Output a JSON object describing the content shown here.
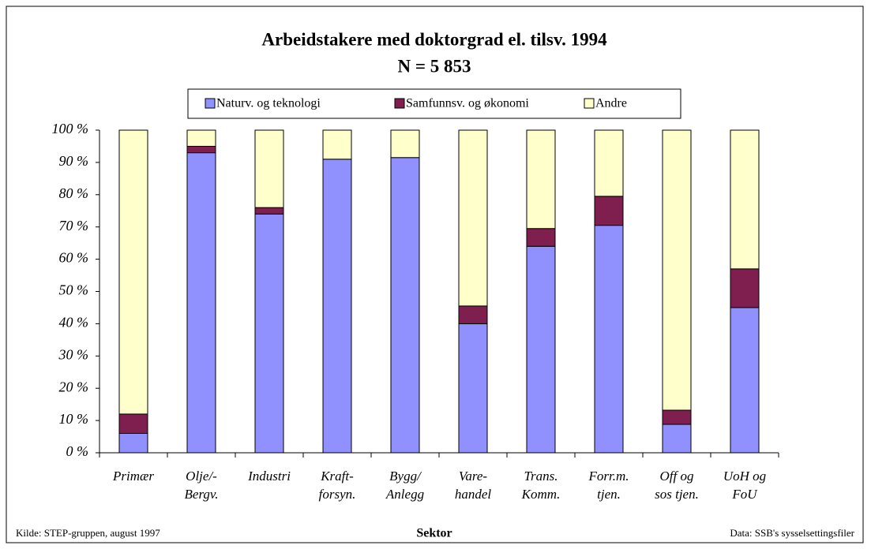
{
  "chart_data": {
    "type": "stacked_bar",
    "title": "Arbeidstakere med doktorgrad el. tilsv. 1994",
    "subtitle": "N = 5 853",
    "x_label": "Sektor",
    "source_left": "Kilde: STEP-gruppen, august 1997",
    "source_right": "Data: SSB's sysselsettingsfiler",
    "categories": [
      "Primær",
      "Olje/-\nBergv.",
      "Industri",
      "Kraft-\nforsyn.",
      "Bygg/\nAnlegg",
      "Vare-\nhandel",
      "Trans.\nKomm.",
      "Forr.m.\ntjen.",
      "Off og\nsos tjen.",
      "UoH og\nFoU"
    ],
    "series": [
      {
        "name": "Naturv. og teknologi",
        "color": "#9090ff",
        "values": [
          6,
          93,
          74,
          91,
          91.5,
          40,
          64,
          70.5,
          8.8,
          45
        ]
      },
      {
        "name": "Samfunnsv. og økonomi",
        "color": "#7f1f4f",
        "values": [
          6,
          2,
          2,
          0,
          0,
          5.5,
          5.5,
          9,
          4.4,
          12
        ]
      },
      {
        "name": "Andre",
        "color": "#ffffcc",
        "values": [
          88,
          5,
          24,
          9,
          8.5,
          54.5,
          30.5,
          20.5,
          86.8,
          43
        ]
      }
    ],
    "ylim": [
      0,
      100
    ],
    "yticks": [
      {
        "value": 0,
        "label": "0 %"
      },
      {
        "value": 10,
        "label": "10 %"
      },
      {
        "value": 20,
        "label": "20 %"
      },
      {
        "value": 30,
        "label": "30 %"
      },
      {
        "value": 40,
        "label": "40 %"
      },
      {
        "value": 50,
        "label": "50 %"
      },
      {
        "value": 60,
        "label": "60 %"
      },
      {
        "value": 70,
        "label": "70 %"
      },
      {
        "value": 80,
        "label": "80 %"
      },
      {
        "value": 90,
        "label": "90 %"
      },
      {
        "value": 100,
        "label": "100 %"
      }
    ],
    "legend": "top",
    "grid": false
  }
}
